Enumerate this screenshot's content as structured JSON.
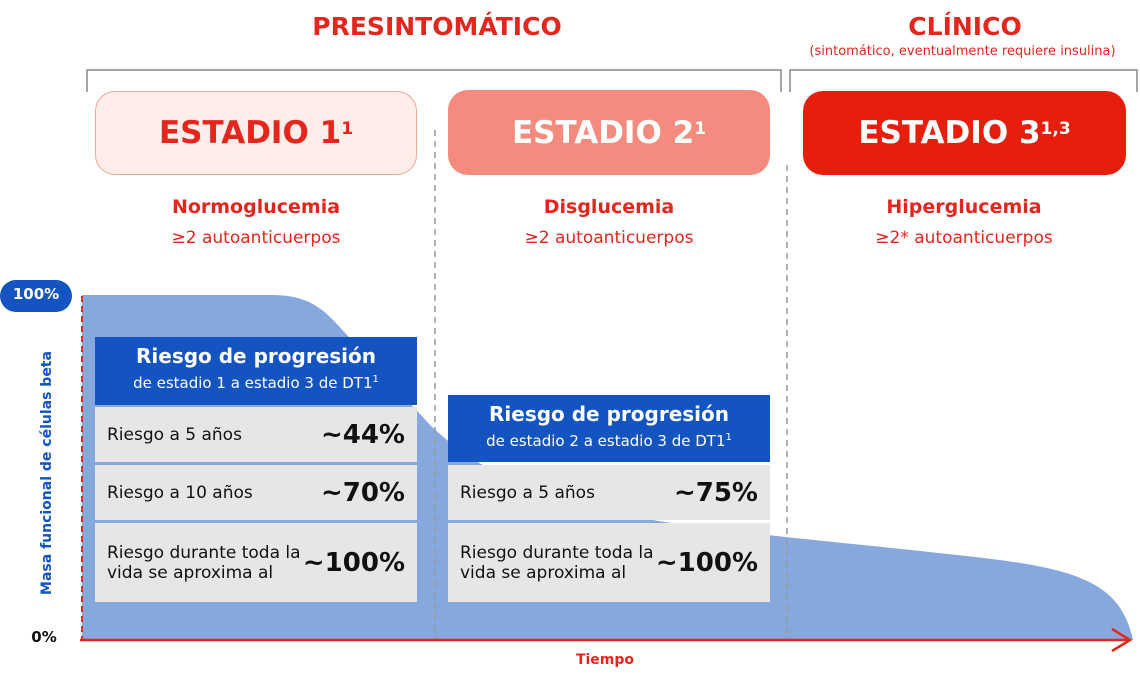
{
  "phases": [
    {
      "title": "PRESINTOMÁTICO"
    },
    {
      "title": "CLÍNICO",
      "subtitle": "(sintomático, eventualmente requiere insulina)"
    }
  ],
  "stages": [
    {
      "label": "ESTADIO 1",
      "sup": "1",
      "condition": "Normoglucemia",
      "antibodies": "≥2 autoanticuerpos"
    },
    {
      "label": "ESTADIO 2",
      "sup": "1",
      "condition": "Disglucemia",
      "antibodies": "≥2 autoanticuerpos"
    },
    {
      "label": "ESTADIO 3",
      "sup": "1,3",
      "condition": "Hiperglucemia",
      "antibodies": "≥2* autoanticuerpos"
    }
  ],
  "risk_tables": [
    {
      "title": "Riesgo de progresión",
      "subtitle": "de estadio 1 a estadio 3 de DT1",
      "sup": "1",
      "rows": [
        {
          "label": "Riesgo a 5 años",
          "value": "~44%"
        },
        {
          "label": "Riesgo a 10 años",
          "value": "~70%"
        },
        {
          "label": "Riesgo durante toda la vida se aproxima al",
          "value": "~100%"
        }
      ]
    },
    {
      "title": "Riesgo de progresión",
      "subtitle": "de estadio 2 a estadio 3 de DT1",
      "sup": "1",
      "rows": [
        {
          "label": "Riesgo a 5 años",
          "value": "~75%"
        },
        {
          "label": "Riesgo durante toda la vida se aproxima al",
          "value": "~100%"
        }
      ]
    }
  ],
  "axis": {
    "y_label": "Masa funcional de células beta",
    "y_top": "100%",
    "y_bottom": "0%",
    "x_label": "Tiempo"
  }
}
